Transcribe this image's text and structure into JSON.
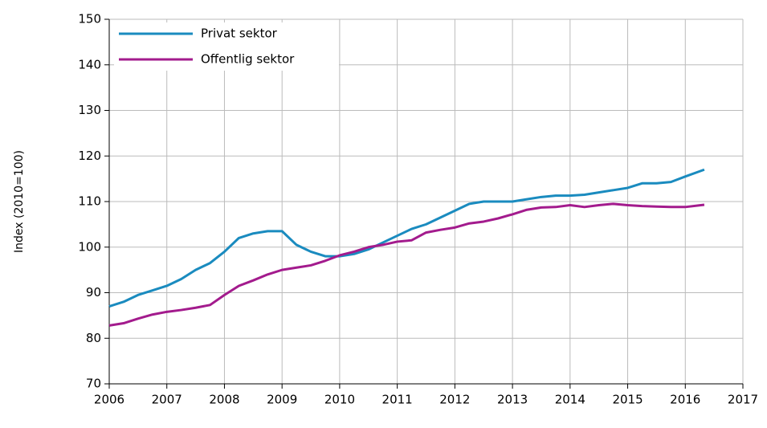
{
  "chart_data": {
    "type": "line",
    "ylabel": "Index (2010=100)",
    "xlim": [
      2006,
      2017
    ],
    "xticks": [
      2006,
      2007,
      2008,
      2009,
      2010,
      2011,
      2012,
      2013,
      2014,
      2015,
      2016,
      2017
    ],
    "ylim": [
      70,
      150
    ],
    "yticks": [
      70,
      80,
      90,
      100,
      110,
      120,
      130,
      140,
      150
    ],
    "grid": true,
    "legend": "top-left",
    "x": [
      2006,
      2006.25,
      2006.5,
      2006.75,
      2007,
      2007.25,
      2007.5,
      2007.75,
      2008,
      2008.25,
      2008.5,
      2008.75,
      2009,
      2009.25,
      2009.5,
      2009.75,
      2010,
      2010.25,
      2010.5,
      2010.75,
      2011,
      2011.25,
      2011.5,
      2011.75,
      2012,
      2012.25,
      2012.5,
      2012.75,
      2013,
      2013.25,
      2013.5,
      2013.75,
      2014,
      2014.25,
      2014.5,
      2014.75,
      2015,
      2015.25,
      2015.5,
      2015.75,
      2016,
      2016.33
    ],
    "series": [
      {
        "name": "Privat sektor",
        "color": "#1a8bbf",
        "values": [
          87,
          88,
          89.5,
          90.5,
          91.5,
          93,
          95,
          96.5,
          99,
          102,
          103,
          103.5,
          103.5,
          100.5,
          99,
          98,
          98,
          98.5,
          99.5,
          101,
          102.5,
          104,
          105,
          106.5,
          108,
          109.5,
          110,
          110,
          110,
          110.5,
          111,
          111.3,
          111.3,
          111.5,
          112,
          112.5,
          113,
          114,
          114,
          114.3,
          115.5,
          117
        ]
      },
      {
        "name": "Offentlig sektor",
        "color": "#a31b8d",
        "values": [
          82.8,
          83.3,
          84.3,
          85.2,
          85.8,
          86.2,
          86.7,
          87.3,
          89.5,
          91.5,
          92.7,
          94,
          95,
          95.5,
          96,
          97,
          98.2,
          99,
          100,
          100.5,
          101.2,
          101.5,
          103.2,
          103.8,
          104.3,
          105.2,
          105.6,
          106.3,
          107.2,
          108.2,
          108.7,
          108.8,
          109.2,
          108.8,
          109.2,
          109.5,
          109.2,
          109,
          108.9,
          108.8,
          108.8,
          109.3
        ]
      }
    ]
  }
}
